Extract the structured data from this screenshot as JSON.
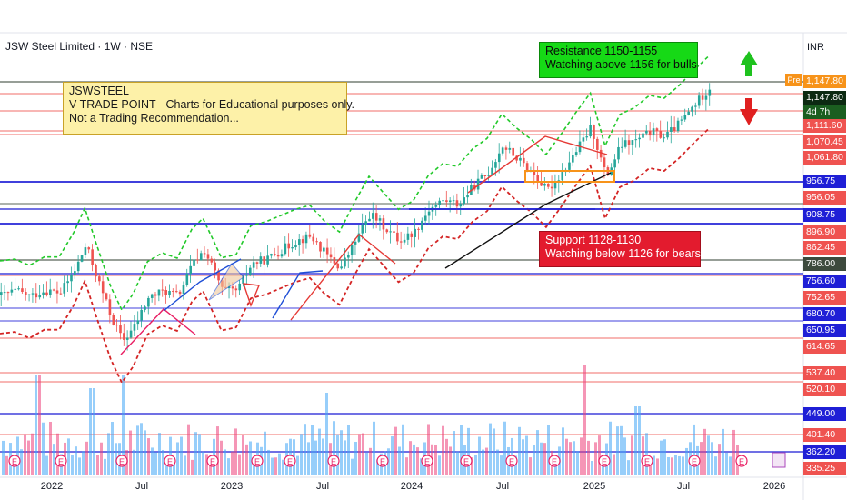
{
  "header": {
    "symbol_title": "JSW Steel Limited · 1W · NSE",
    "currency": "INR",
    "pre_tag": "Pre"
  },
  "notes": {
    "info": [
      "JSWSTEEL",
      "V TRADE POINT - Charts for Educational purposes only.",
      "Not a Trading Recommendation..."
    ],
    "resistance": [
      "Resistance 1150-1155",
      "Watching above 1156 for bulls"
    ],
    "support": [
      "Support 1128-1130",
      "Watching below 1126 for bears"
    ]
  },
  "colors": {
    "up": "#26a69a",
    "down": "#ef5350",
    "support_line": "#1f1fd6",
    "resistance_line": "#e53935",
    "dark_line": "#3d4a3d",
    "ema_green": "#22c92a",
    "ema_red": "#d42424",
    "volume_blue": "#42a5f5",
    "volume_pink": "#ec407a",
    "arrow_up": "#1ec21e",
    "arrow_down": "#e02020"
  },
  "icons": [
    "arrow-up-icon",
    "arrow-down-icon",
    "earnings-marker-icon",
    "dividend-marker-icon"
  ],
  "chart_data": {
    "type": "candlestick",
    "x_ticks": [
      "2022",
      "Jul",
      "2023",
      "Jul",
      "2024",
      "Jul",
      "2025",
      "Jul",
      "2026"
    ],
    "price_labels": [
      {
        "value": 1147.8,
        "text": "1,147.80",
        "color": "#f7931a"
      },
      {
        "value": 1147.8,
        "text": "1,147.80",
        "color": "#0c2a12"
      },
      {
        "value": 1135.0,
        "text": "4d 7h",
        "color": "#1b5e20"
      },
      {
        "value": 1111.6,
        "text": "1,111.60",
        "color": "#ef5350"
      },
      {
        "value": 1070.45,
        "text": "1,070.45",
        "color": "#ef5350"
      },
      {
        "value": 1061.8,
        "text": "1,061.80",
        "color": "#ef5350"
      },
      {
        "value": 956.75,
        "text": "956.75",
        "color": "#1f1fd6"
      },
      {
        "value": 956.05,
        "text": "956.05",
        "color": "#ef5350"
      },
      {
        "value": 908.75,
        "text": "908.75",
        "color": "#1f1fd6"
      },
      {
        "value": 896.9,
        "text": "896.90",
        "color": "#ef5350"
      },
      {
        "value": 862.45,
        "text": "862.45",
        "color": "#ef5350"
      },
      {
        "value": 786.0,
        "text": "786.00",
        "color": "#3d4a3d"
      },
      {
        "value": 756.6,
        "text": "756.60",
        "color": "#1f1fd6"
      },
      {
        "value": 752.65,
        "text": "752.65",
        "color": "#ef5350"
      },
      {
        "value": 680.7,
        "text": "680.70",
        "color": "#1f1fd6"
      },
      {
        "value": 650.95,
        "text": "650.95",
        "color": "#1f1fd6"
      },
      {
        "value": 614.65,
        "text": "614.65",
        "color": "#ef5350"
      },
      {
        "value": 537.4,
        "text": "537.40",
        "color": "#ef5350"
      },
      {
        "value": 520.1,
        "text": "520.10",
        "color": "#ef5350"
      },
      {
        "value": 449.0,
        "text": "449.00",
        "color": "#1f1fd6"
      },
      {
        "value": 401.4,
        "text": "401.40",
        "color": "#ef5350"
      },
      {
        "value": 362.2,
        "text": "362.20",
        "color": "#1f1fd6"
      },
      {
        "value": 335.25,
        "text": "335.25",
        "color": "#ef5350"
      }
    ],
    "price_points": [
      {
        "t": 0.0,
        "p": 690
      },
      {
        "t": 0.02,
        "p": 700
      },
      {
        "t": 0.04,
        "p": 688
      },
      {
        "t": 0.06,
        "p": 702
      },
      {
        "t": 0.08,
        "p": 695
      },
      {
        "t": 0.1,
        "p": 745
      },
      {
        "t": 0.115,
        "p": 800
      },
      {
        "t": 0.13,
        "p": 730
      },
      {
        "t": 0.15,
        "p": 640
      },
      {
        "t": 0.165,
        "p": 590
      },
      {
        "t": 0.18,
        "p": 620
      },
      {
        "t": 0.2,
        "p": 685
      },
      {
        "t": 0.22,
        "p": 700
      },
      {
        "t": 0.24,
        "p": 690
      },
      {
        "t": 0.26,
        "p": 760
      },
      {
        "t": 0.275,
        "p": 790
      },
      {
        "t": 0.29,
        "p": 740
      },
      {
        "t": 0.3,
        "p": 700
      },
      {
        "t": 0.32,
        "p": 700
      },
      {
        "t": 0.34,
        "p": 760
      },
      {
        "t": 0.36,
        "p": 770
      },
      {
        "t": 0.38,
        "p": 790
      },
      {
        "t": 0.4,
        "p": 810
      },
      {
        "t": 0.42,
        "p": 820
      },
      {
        "t": 0.44,
        "p": 780
      },
      {
        "t": 0.46,
        "p": 750
      },
      {
        "t": 0.48,
        "p": 810
      },
      {
        "t": 0.5,
        "p": 870
      },
      {
        "t": 0.52,
        "p": 840
      },
      {
        "t": 0.54,
        "p": 810
      },
      {
        "t": 0.56,
        "p": 830
      },
      {
        "t": 0.58,
        "p": 880
      },
      {
        "t": 0.6,
        "p": 900
      },
      {
        "t": 0.62,
        "p": 890
      },
      {
        "t": 0.64,
        "p": 930
      },
      {
        "t": 0.66,
        "p": 960
      },
      {
        "t": 0.68,
        "p": 1020
      },
      {
        "t": 0.7,
        "p": 990
      },
      {
        "t": 0.72,
        "p": 960
      },
      {
        "t": 0.74,
        "p": 920
      },
      {
        "t": 0.76,
        "p": 960
      },
      {
        "t": 0.78,
        "p": 1010
      },
      {
        "t": 0.8,
        "p": 1060
      },
      {
        "t": 0.82,
        "p": 950
      },
      {
        "t": 0.84,
        "p": 1020
      },
      {
        "t": 0.86,
        "p": 1030
      },
      {
        "t": 0.88,
        "p": 1050
      },
      {
        "t": 0.9,
        "p": 1040
      },
      {
        "t": 0.92,
        "p": 1070
      },
      {
        "t": 0.94,
        "p": 1110
      },
      {
        "t": 0.96,
        "p": 1147
      }
    ],
    "levels": [
      {
        "value": 1155,
        "color": "#3d4a3d"
      },
      {
        "value": 1130,
        "color": "#ef5350"
      },
      {
        "value": 1111.6,
        "color": "#ef5350"
      },
      {
        "value": 1070.45,
        "color": "#ef5350"
      },
      {
        "value": 1061.8,
        "color": "#ef5350"
      },
      {
        "value": 956.75,
        "color": "#1f1fd6"
      },
      {
        "value": 956.05,
        "color": "#ef5350"
      },
      {
        "value": 908.75,
        "color": "#1f1fd6"
      },
      {
        "value": 896.9,
        "color": "#1f1fd6"
      },
      {
        "value": 786.0,
        "color": "#3d4a3d"
      },
      {
        "value": 756.6,
        "color": "#1f1fd6"
      },
      {
        "value": 752.65,
        "color": "#ef5350"
      },
      {
        "value": 680.7,
        "color": "#1f1fd6"
      },
      {
        "value": 650.95,
        "color": "#1f1fd6"
      },
      {
        "value": 614.65,
        "color": "#ef5350"
      },
      {
        "value": 537.4,
        "color": "#ef5350"
      },
      {
        "value": 520.1,
        "color": "#ef5350"
      },
      {
        "value": 449.0,
        "color": "#1f1fd6"
      },
      {
        "value": 401.4,
        "color": "#ef5350"
      },
      {
        "value": 362.2,
        "color": "#1f1fd6"
      }
    ]
  }
}
